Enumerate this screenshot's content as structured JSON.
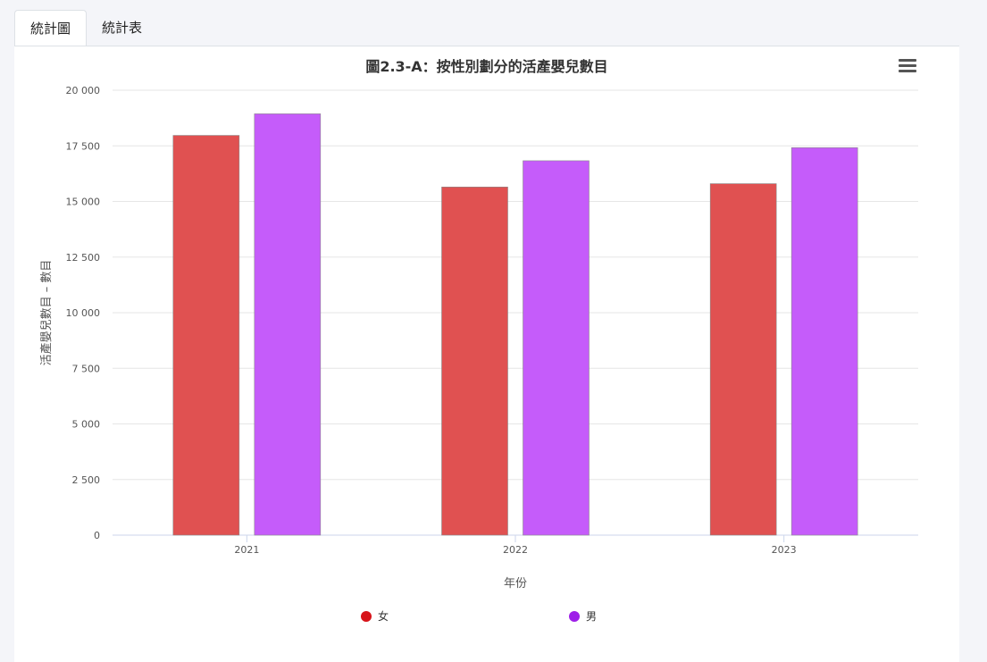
{
  "tabs": [
    {
      "label": "統計圖",
      "active": true
    },
    {
      "label": "統計表",
      "active": false
    }
  ],
  "menu_icon": "hamburger-menu-icon",
  "caption": "",
  "chart_data": {
    "type": "bar",
    "title": "圖2.3-A：按性別劃分的活產嬰兒數目",
    "xlabel": "年份",
    "ylabel": "活產嬰兒數目 – 數目",
    "categories": [
      "2021",
      "2022",
      "2023"
    ],
    "series": [
      {
        "name": "女",
        "color": "#e05151",
        "legend_color": "#d7141a",
        "values": [
          17970,
          15650,
          15800
        ]
      },
      {
        "name": "男",
        "color": "#c55cfa",
        "legend_color": "#9e1fe8",
        "values": [
          18940,
          16830,
          17420
        ]
      }
    ],
    "ylim": [
      0,
      20000
    ],
    "yticks": [
      0,
      2500,
      5000,
      7500,
      10000,
      12500,
      15000,
      17500,
      20000
    ],
    "ytick_labels": [
      "0",
      "2 500",
      "5 000",
      "7 500",
      "10 000",
      "12 500",
      "15 000",
      "17 500",
      "20 000"
    ],
    "grid": true,
    "legend_position": "bottom"
  }
}
